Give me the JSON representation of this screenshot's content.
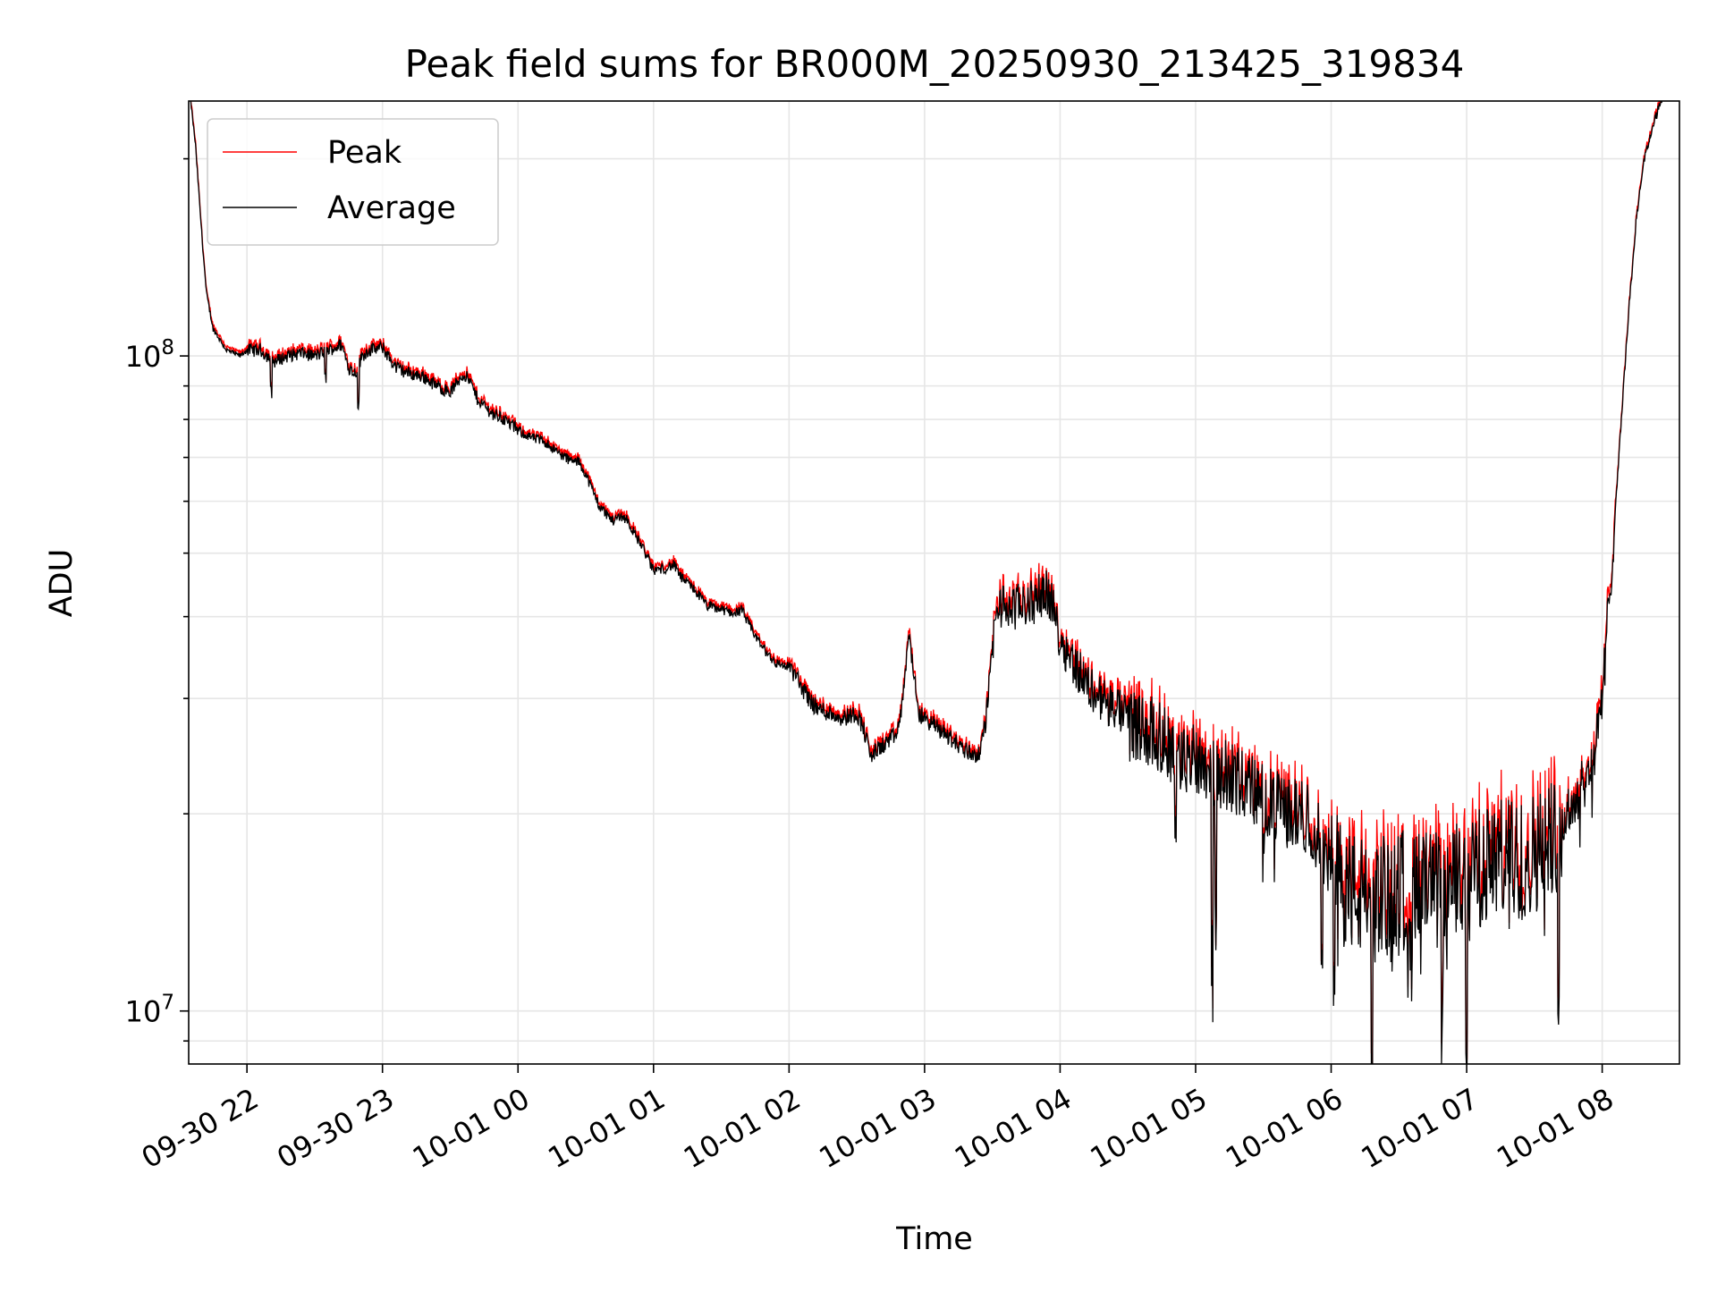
{
  "chart_data": {
    "type": "line",
    "title": "Peak field sums for BR000M_20250930_213425_319834",
    "xlabel": "Time",
    "ylabel": "ADU",
    "yscale": "log",
    "ylim": [
      8300000,
      245000000
    ],
    "xlim": [
      21.57,
      32.57
    ],
    "x_units": "hours since 09-30 00:00",
    "grid": true,
    "legend_position": "upper-left",
    "x_ticks": [
      {
        "value": 22,
        "label": "09-30 22"
      },
      {
        "value": 23,
        "label": "09-30 23"
      },
      {
        "value": 24,
        "label": "10-01 00"
      },
      {
        "value": 25,
        "label": "10-01 01"
      },
      {
        "value": 26,
        "label": "10-01 02"
      },
      {
        "value": 27,
        "label": "10-01 03"
      },
      {
        "value": 28,
        "label": "10-01 04"
      },
      {
        "value": 29,
        "label": "10-01 05"
      },
      {
        "value": 30,
        "label": "10-01 06"
      },
      {
        "value": 31,
        "label": "10-01 07"
      },
      {
        "value": 32,
        "label": "10-01 08"
      }
    ],
    "y_major_ticks": [
      {
        "value": 10000000,
        "base": "10",
        "exp": "7"
      },
      {
        "value": 100000000,
        "base": "10",
        "exp": "8"
      }
    ],
    "series": [
      {
        "name": "Peak",
        "color": "#ff0000"
      },
      {
        "name": "Average",
        "color": "#000000"
      }
    ],
    "average_trend": [
      [
        21.58,
        250000000
      ],
      [
        21.62,
        210000000
      ],
      [
        21.67,
        150000000
      ],
      [
        21.7,
        125000000
      ],
      [
        21.75,
        110000000
      ],
      [
        21.85,
        102000000
      ],
      [
        21.95,
        100000000
      ],
      [
        22.0,
        102000000
      ],
      [
        22.1,
        102000000
      ],
      [
        22.2,
        98000000
      ],
      [
        22.3,
        100000000
      ],
      [
        22.4,
        101000000
      ],
      [
        22.5,
        100000000
      ],
      [
        22.6,
        102000000
      ],
      [
        22.7,
        104000000
      ],
      [
        22.75,
        96000000
      ],
      [
        22.8,
        94000000
      ],
      [
        22.85,
        100000000
      ],
      [
        22.9,
        102000000
      ],
      [
        23.0,
        103000000
      ],
      [
        23.1,
        96000000
      ],
      [
        23.2,
        94000000
      ],
      [
        23.3,
        93000000
      ],
      [
        23.4,
        90000000
      ],
      [
        23.5,
        88000000
      ],
      [
        23.55,
        91000000
      ],
      [
        23.6,
        94000000
      ],
      [
        23.65,
        91000000
      ],
      [
        23.7,
        86000000
      ],
      [
        23.8,
        82000000
      ],
      [
        23.9,
        80000000
      ],
      [
        24.0,
        77000000
      ],
      [
        24.1,
        75000000
      ],
      [
        24.2,
        74000000
      ],
      [
        24.3,
        71000000
      ],
      [
        24.4,
        69000000
      ],
      [
        24.45,
        69000000
      ],
      [
        24.5,
        66000000
      ],
      [
        24.6,
        59000000
      ],
      [
        24.7,
        56000000
      ],
      [
        24.75,
        57000000
      ],
      [
        24.8,
        56500000
      ],
      [
        24.85,
        54000000
      ],
      [
        24.92,
        51000000
      ],
      [
        25.0,
        47000000
      ],
      [
        25.1,
        47500000
      ],
      [
        25.15,
        48000000
      ],
      [
        25.2,
        46000000
      ],
      [
        25.3,
        44000000
      ],
      [
        25.4,
        41500000
      ],
      [
        25.5,
        41000000
      ],
      [
        25.6,
        40500000
      ],
      [
        25.65,
        41000000
      ],
      [
        25.7,
        39000000
      ],
      [
        25.8,
        36000000
      ],
      [
        25.9,
        34000000
      ],
      [
        26.0,
        33500000
      ],
      [
        26.05,
        32500000
      ],
      [
        26.1,
        31000000
      ],
      [
        26.2,
        29000000
      ],
      [
        26.3,
        28500000
      ],
      [
        26.4,
        28000000
      ],
      [
        26.5,
        28500000
      ],
      [
        26.55,
        27000000
      ],
      [
        26.6,
        24500000
      ],
      [
        26.7,
        25500000
      ],
      [
        26.8,
        26500000
      ],
      [
        26.85,
        31000000
      ],
      [
        26.88,
        38000000
      ],
      [
        26.92,
        33000000
      ],
      [
        26.95,
        28500000
      ],
      [
        27.0,
        28000000
      ],
      [
        27.1,
        27000000
      ],
      [
        27.2,
        26000000
      ],
      [
        27.3,
        25000000
      ],
      [
        27.4,
        24500000
      ],
      [
        27.45,
        27500000
      ],
      [
        27.5,
        36000000
      ],
      [
        27.55,
        42000000
      ],
      [
        27.6,
        41000000
      ],
      [
        27.7,
        41500000
      ],
      [
        27.8,
        42000000
      ],
      [
        27.9,
        44000000
      ],
      [
        27.95,
        41000000
      ],
      [
        28.0,
        37000000
      ],
      [
        28.1,
        34000000
      ],
      [
        28.2,
        31500000
      ],
      [
        28.3,
        30000000
      ],
      [
        28.4,
        29000000
      ],
      [
        28.5,
        28000000
      ],
      [
        28.6,
        27000000
      ],
      [
        28.7,
        26500000
      ],
      [
        28.8,
        25500000
      ],
      [
        28.9,
        24000000
      ],
      [
        29.0,
        24500000
      ],
      [
        29.1,
        23500000
      ],
      [
        29.2,
        23000000
      ],
      [
        29.3,
        22500000
      ],
      [
        29.4,
        22000000
      ],
      [
        29.5,
        21000000
      ],
      [
        29.6,
        20500000
      ],
      [
        29.7,
        20000000
      ],
      [
        29.8,
        20000000
      ],
      [
        29.9,
        18500000
      ],
      [
        30.0,
        16500000
      ],
      [
        30.1,
        15500000
      ],
      [
        30.2,
        15000000
      ],
      [
        30.3,
        14500000
      ],
      [
        30.4,
        15000000
      ],
      [
        30.5,
        15500000
      ],
      [
        30.6,
        15000000
      ],
      [
        30.7,
        15500000
      ],
      [
        30.8,
        15000000
      ],
      [
        30.9,
        15500000
      ],
      [
        31.0,
        16000000
      ],
      [
        31.1,
        16500000
      ],
      [
        31.2,
        17000000
      ],
      [
        31.3,
        17000000
      ],
      [
        31.4,
        17000000
      ],
      [
        31.5,
        17500000
      ],
      [
        31.6,
        18000000
      ],
      [
        31.7,
        19000000
      ],
      [
        31.75,
        20000000
      ],
      [
        31.8,
        21000000
      ],
      [
        31.85,
        22000000
      ],
      [
        31.9,
        23000000
      ],
      [
        31.95,
        25000000
      ],
      [
        32.0,
        30000000
      ],
      [
        32.05,
        42000000
      ],
      [
        32.1,
        60000000
      ],
      [
        32.15,
        85000000
      ],
      [
        32.2,
        120000000
      ],
      [
        32.25,
        160000000
      ],
      [
        32.3,
        195000000
      ],
      [
        32.35,
        215000000
      ],
      [
        32.4,
        235000000
      ],
      [
        32.45,
        250000000
      ]
    ]
  },
  "legend": {
    "items": [
      {
        "label": "Peak"
      },
      {
        "label": "Average"
      }
    ]
  }
}
